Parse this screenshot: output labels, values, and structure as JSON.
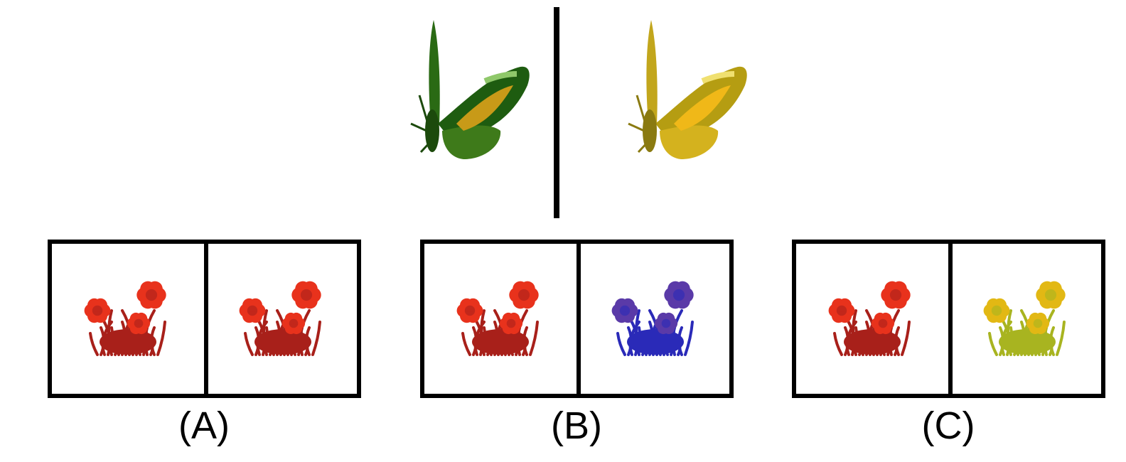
{
  "top_pair": {
    "left_butterfly_color": "#1f5a12",
    "right_butterfly_color": "#b59d12"
  },
  "options": [
    {
      "label": "(A)",
      "left_flower": "red",
      "right_flower": "red"
    },
    {
      "label": "(B)",
      "left_flower": "red",
      "right_flower": "blue"
    },
    {
      "label": "(C)",
      "left_flower": "red",
      "right_flower": "yellow"
    }
  ],
  "colors": {
    "red": {
      "petal": "#e8321c",
      "leaf": "#a8201a"
    },
    "blue": {
      "petal": "#5a3aa8",
      "leaf": "#2a2ab8"
    },
    "yellow": {
      "petal": "#e2b814",
      "leaf": "#a8b420"
    }
  }
}
